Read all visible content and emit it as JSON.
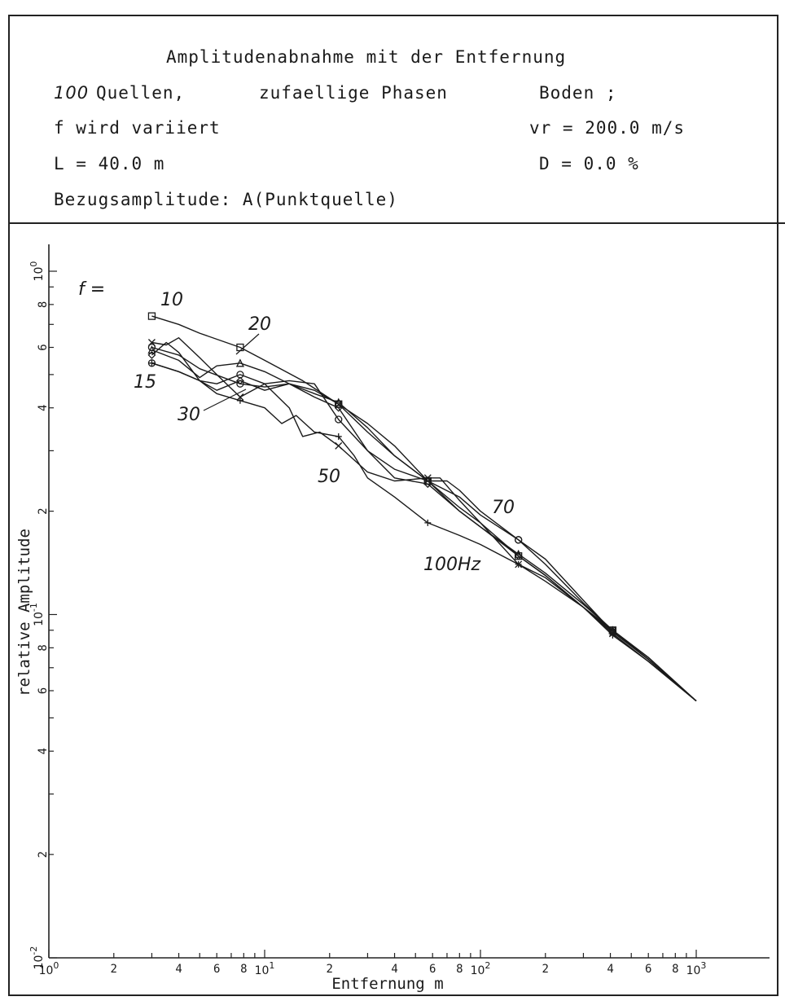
{
  "header": {
    "title": "Amplitudenabnahme mit der Entfernung",
    "sources_count": "100",
    "sources_label": "Quellen,",
    "phases": "zufaellige Phasen",
    "ground": "Boden ;",
    "frequency_note": "f wird variiert",
    "velocity": "vr = 200.0 m/s",
    "length": "L = 40.0 m",
    "damping": "D = 0.0 %",
    "reference": "Bezugsamplitude: A(Punktquelle)"
  },
  "chart_data": {
    "type": "line",
    "title": "",
    "xlabel": "Entfernung  m",
    "ylabel": "relative Amplitude",
    "xscale": "log",
    "yscale": "log",
    "xlim": [
      1,
      1000
    ],
    "ylim": [
      0.01,
      1
    ],
    "x_major_labels": [
      "10^0",
      "10^1",
      "10^2",
      "10^3"
    ],
    "x_minor_labels": [
      "2",
      "4",
      "6",
      "8",
      "2",
      "4",
      "6",
      "8",
      "2",
      "4",
      "6",
      "8"
    ],
    "y_major_labels": [
      "10^-2",
      "10^-1",
      "10^0"
    ],
    "y_minor_labels": [
      "2",
      "4",
      "6",
      "8",
      "2",
      "4",
      "6",
      "8"
    ],
    "legend_prefix": "f =",
    "grid": false,
    "series": [
      {
        "name": "10",
        "marker": "square",
        "x": [
          3,
          4,
          5,
          7.7,
          10,
          15,
          22,
          30,
          40,
          57,
          80,
          100,
          150,
          200,
          300,
          410,
          600,
          1000
        ],
        "y": [
          0.74,
          0.7,
          0.66,
          0.6,
          0.55,
          0.48,
          0.41,
          0.34,
          0.29,
          0.245,
          0.205,
          0.185,
          0.148,
          0.13,
          0.105,
          0.09,
          0.075,
          0.056
        ]
      },
      {
        "name": "15",
        "marker": "circle",
        "x": [
          3,
          4,
          5,
          6,
          7.7,
          10,
          13,
          17,
          22,
          30,
          40,
          57,
          80,
          100,
          150,
          200,
          300,
          410,
          600,
          1000
        ],
        "y": [
          0.54,
          0.51,
          0.48,
          0.47,
          0.5,
          0.47,
          0.48,
          0.47,
          0.37,
          0.3,
          0.265,
          0.245,
          0.22,
          0.195,
          0.165,
          0.145,
          0.11,
          0.089,
          0.074,
          0.056
        ]
      },
      {
        "name": "20",
        "marker": "triangle",
        "x": [
          3,
          4,
          5,
          6,
          7.7,
          10,
          13,
          17,
          22,
          30,
          40,
          57,
          80,
          100,
          150,
          200,
          300,
          410,
          600,
          1000
        ],
        "y": [
          0.59,
          0.55,
          0.49,
          0.53,
          0.54,
          0.51,
          0.47,
          0.44,
          0.415,
          0.35,
          0.29,
          0.245,
          0.2,
          0.18,
          0.15,
          0.132,
          0.107,
          0.09,
          0.075,
          0.056
        ]
      },
      {
        "name": "30",
        "marker": "diamond",
        "x": [
          3,
          3.5,
          4,
          5,
          6,
          7.7,
          10,
          13,
          17,
          22,
          30,
          40,
          57,
          80,
          100,
          150,
          200,
          300,
          410,
          600,
          1000
        ],
        "y": [
          0.57,
          0.62,
          0.58,
          0.48,
          0.45,
          0.48,
          0.45,
          0.47,
          0.43,
          0.4,
          0.3,
          0.25,
          0.24,
          0.2,
          0.18,
          0.148,
          0.13,
          0.105,
          0.089,
          0.074,
          0.056
        ]
      },
      {
        "name": "50",
        "marker": "x",
        "x": [
          3,
          3.5,
          4,
          5,
          6,
          7.7,
          10,
          13,
          15,
          18,
          22,
          30,
          40,
          57,
          65,
          80,
          100,
          150,
          200,
          300,
          410,
          600,
          1000
        ],
        "y": [
          0.62,
          0.61,
          0.64,
          0.56,
          0.5,
          0.43,
          0.47,
          0.4,
          0.33,
          0.34,
          0.31,
          0.26,
          0.245,
          0.25,
          0.25,
          0.215,
          0.185,
          0.14,
          0.128,
          0.105,
          0.088,
          0.073,
          0.056
        ]
      },
      {
        "name": "70",
        "marker": "circle",
        "x": [
          3,
          4,
          5,
          7.7,
          10,
          13,
          17,
          22,
          30,
          40,
          57,
          70,
          80,
          100,
          150,
          200,
          300,
          410,
          600,
          1000
        ],
        "y": [
          0.6,
          0.57,
          0.52,
          0.47,
          0.46,
          0.47,
          0.45,
          0.41,
          0.36,
          0.31,
          0.245,
          0.245,
          0.23,
          0.2,
          0.165,
          0.14,
          0.108,
          0.09,
          0.074,
          0.056
        ]
      },
      {
        "name": "100Hz",
        "marker": "star",
        "x": [
          3,
          4,
          5,
          6,
          7.7,
          10,
          12,
          14,
          17,
          22,
          26,
          30,
          40,
          57,
          80,
          100,
          150,
          200,
          300,
          410,
          600,
          1000
        ],
        "y": [
          0.54,
          0.51,
          0.48,
          0.44,
          0.42,
          0.4,
          0.36,
          0.38,
          0.34,
          0.33,
          0.29,
          0.25,
          0.22,
          0.185,
          0.17,
          0.16,
          0.14,
          0.125,
          0.105,
          0.087,
          0.073,
          0.056
        ]
      }
    ]
  }
}
